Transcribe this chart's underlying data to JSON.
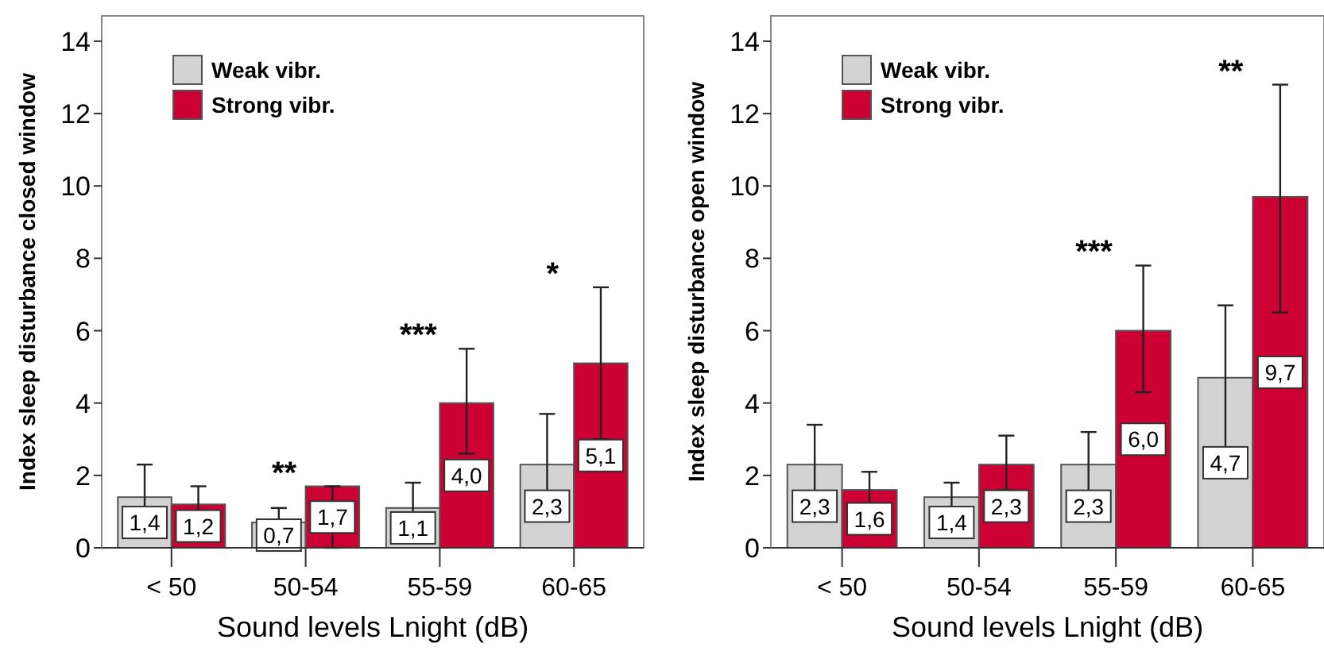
{
  "chart_data": [
    {
      "type": "bar",
      "xlabel": "Sound levels Lnight (dB)",
      "ylabel": "Index sleep disturbance closed window",
      "categories": [
        "< 50",
        "50-54",
        "55-59",
        "60-65"
      ],
      "series": [
        {
          "name": "Weak vibr.",
          "color": "#d3d3d3",
          "values": [
            1.4,
            0.7,
            1.1,
            2.3
          ],
          "value_labels": [
            "1,4",
            "0,7",
            "1,1",
            "2,3"
          ],
          "errors": [
            [
              0.5,
              2.3
            ],
            [
              0.3,
              1.1
            ],
            [
              0.4,
              1.8
            ],
            [
              0.9,
              3.7
            ]
          ]
        },
        {
          "name": "Strong vibr.",
          "color": "#cc0033",
          "values": [
            1.2,
            1.7,
            4.0,
            5.1
          ],
          "value_labels": [
            "1,2",
            "1,7",
            "4,0",
            "5,1"
          ],
          "errors": [
            [
              0.7,
              1.7
            ],
            [
              0,
              1.7
            ],
            [
              2.6,
              5.5
            ],
            [
              3.0,
              7.2
            ]
          ]
        }
      ],
      "ylim": [
        0,
        14.7
      ],
      "yticks": [
        0,
        2,
        4,
        6,
        8,
        10,
        12,
        14
      ],
      "legend": "top left",
      "grid": false,
      "annotations": [
        "**",
        "***",
        "*"
      ]
    },
    {
      "type": "bar",
      "xlabel": "Sound levels Lnight (dB)",
      "ylabel": "Index sleep disturbance open window",
      "categories": [
        "< 50",
        "50-54",
        "55-59",
        "60-65"
      ],
      "series": [
        {
          "name": "Weak vibr.",
          "color": "#d3d3d3",
          "values": [
            2.3,
            1.4,
            2.3,
            4.7
          ],
          "value_labels": [
            "2,3",
            "1,4",
            "2,3",
            "4,7"
          ],
          "errors": [
            [
              1.3,
              3.4
            ],
            [
              1.0,
              1.8
            ],
            [
              1.4,
              3.2
            ],
            [
              2.7,
              6.7
            ]
          ]
        },
        {
          "name": "Strong vibr.",
          "color": "#cc0033",
          "values": [
            1.6,
            2.3,
            6.0,
            9.7
          ],
          "value_labels": [
            "1,6",
            "2,3",
            "6,0",
            "9,7"
          ],
          "errors": [
            [
              1.0,
              2.1
            ],
            [
              1.6,
              3.1
            ],
            [
              4.3,
              7.8
            ],
            [
              6.5,
              12.8
            ]
          ]
        }
      ],
      "ylim": [
        0,
        14.7
      ],
      "yticks": [
        0,
        2,
        4,
        6,
        8,
        10,
        12,
        14
      ],
      "legend": "top left",
      "grid": false,
      "annotations": [
        "***",
        "**"
      ]
    }
  ]
}
